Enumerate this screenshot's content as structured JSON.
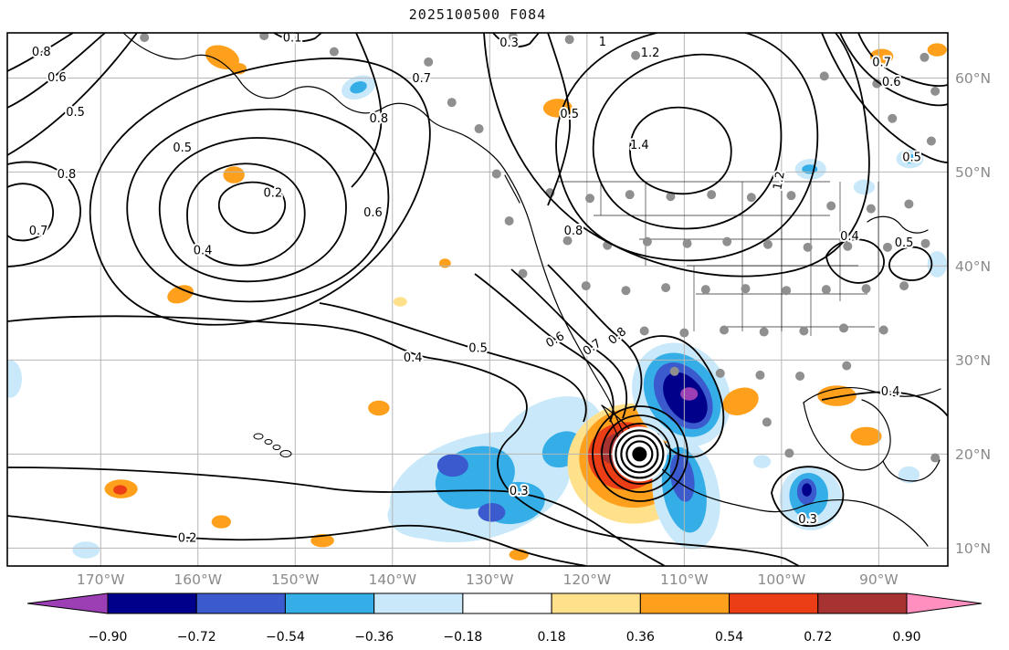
{
  "title": "2025100500 F084",
  "chart_data": {
    "type": "contour_map",
    "title": "2025100500 F084",
    "description": "Filled anomaly/sensitivity field (shaded), black line contours with inline labels, gray observation-station dots, and a tropical-cyclone position marker over the northeast Pacific / North America",
    "lon_range": [
      -179.6,
      -82.9
    ],
    "lat_range": [
      8.1,
      64.8
    ],
    "grid": true,
    "grid_color": "#b5b5b5",
    "frame_color": "#000000",
    "x_ticks": [
      {
        "lon": -170,
        "label": "170°W"
      },
      {
        "lon": -160,
        "label": "160°W"
      },
      {
        "lon": -150,
        "label": "150°W"
      },
      {
        "lon": -140,
        "label": "140°W"
      },
      {
        "lon": -130,
        "label": "130°W"
      },
      {
        "lon": -120,
        "label": "120°W"
      },
      {
        "lon": -110,
        "label": "110°W"
      },
      {
        "lon": -100,
        "label": "100°W"
      },
      {
        "lon": -90,
        "label": "90°W"
      }
    ],
    "y_ticks": [
      {
        "lat": 10,
        "label": "10°N"
      },
      {
        "lat": 20,
        "label": "20°N"
      },
      {
        "lat": 30,
        "label": "30°N"
      },
      {
        "lat": 40,
        "label": "40°N"
      },
      {
        "lat": 50,
        "label": "50°N"
      },
      {
        "lat": 60,
        "label": "60°N"
      }
    ],
    "tick_label_color": "#8a8a8a",
    "contour_line_color": "#000000",
    "station_color": "#8f8f8f",
    "cyclone_marker": {
      "lon": -114.6,
      "lat": 20.0
    },
    "contour_labels": [
      {
        "v": "0.8",
        "lon": -176.1,
        "lat": 62.8,
        "rot": 0
      },
      {
        "v": "0.6",
        "lon": -174.5,
        "lat": 60.1,
        "rot": 0
      },
      {
        "v": "0.5",
        "lon": -172.6,
        "lat": 56.4,
        "rot": 0
      },
      {
        "v": "0.8",
        "lon": -173.5,
        "lat": 49.8,
        "rot": 0
      },
      {
        "v": "0.7",
        "lon": -176.4,
        "lat": 43.8,
        "rot": 0
      },
      {
        "v": "0.2",
        "lon": -152.3,
        "lat": 47.8,
        "rot": 0
      },
      {
        "v": "0.4",
        "lon": -159.5,
        "lat": 41.7,
        "rot": 0
      },
      {
        "v": "0.5",
        "lon": -161.6,
        "lat": 52.6,
        "rot": 0
      },
      {
        "v": "0.6",
        "lon": -142.0,
        "lat": 45.7,
        "rot": 0
      },
      {
        "v": "0.7",
        "lon": -137.0,
        "lat": 60.0,
        "rot": 0
      },
      {
        "v": "0.8",
        "lon": -141.4,
        "lat": 55.7,
        "rot": 0
      },
      {
        "v": "0.1",
        "lon": -150.3,
        "lat": 64.3,
        "rot": 0
      },
      {
        "v": "0.3",
        "lon": -128.0,
        "lat": 63.8,
        "rot": 0
      },
      {
        "v": "0.5",
        "lon": -121.8,
        "lat": 56.2,
        "rot": 0
      },
      {
        "v": "0.4",
        "lon": -137.9,
        "lat": 30.3,
        "rot": 0
      },
      {
        "v": "0.5",
        "lon": -131.2,
        "lat": 31.3,
        "rot": 0
      },
      {
        "v": "0.6",
        "lon": -123.3,
        "lat": 32.2,
        "rot": -30
      },
      {
        "v": "0.7",
        "lon": -119.5,
        "lat": 31.4,
        "rot": -35
      },
      {
        "v": "0.8",
        "lon": -116.9,
        "lat": 32.6,
        "rot": -40
      },
      {
        "v": "0.2",
        "lon": -161.1,
        "lat": 11.1,
        "rot": 0
      },
      {
        "v": "0.3",
        "lon": -127.0,
        "lat": 16.1,
        "rot": 0
      },
      {
        "v": "0.3",
        "lon": -97.3,
        "lat": 13.1,
        "rot": 0
      },
      {
        "v": "1.2",
        "lon": -113.5,
        "lat": 62.7,
        "rot": 0
      },
      {
        "v": "1.4",
        "lon": -114.6,
        "lat": 52.9,
        "rot": 0
      },
      {
        "v": "1.2",
        "lon": -100.3,
        "lat": 49.1,
        "rot": -80
      },
      {
        "v": "1",
        "lon": -118.4,
        "lat": 63.9,
        "rot": 0
      },
      {
        "v": "0.8",
        "lon": -121.4,
        "lat": 43.8,
        "rot": 0
      },
      {
        "v": "0.7",
        "lon": -89.7,
        "lat": 61.7,
        "rot": 0
      },
      {
        "v": "0.6",
        "lon": -88.7,
        "lat": 59.6,
        "rot": 0
      },
      {
        "v": "0.5",
        "lon": -86.6,
        "lat": 51.6,
        "rot": 0
      },
      {
        "v": "0.4",
        "lon": -93.0,
        "lat": 43.2,
        "rot": 0
      },
      {
        "v": "0.5",
        "lon": -87.4,
        "lat": 42.5,
        "rot": 0
      },
      {
        "v": "0.4",
        "lon": -88.8,
        "lat": 26.7,
        "rot": 0
      }
    ],
    "region_fields": [
      "lon",
      "lat",
      "rx_deg",
      "ry_deg",
      "rotation_deg",
      "value"
    ],
    "shaded_regions": [
      [
        -131.0,
        16.5,
        9.5,
        5.5,
        -15,
        -0.25
      ],
      [
        -124.0,
        21.5,
        6.0,
        4.0,
        -30,
        -0.25
      ],
      [
        -136.5,
        13.5,
        4.0,
        2.5,
        0,
        -0.25
      ],
      [
        -141.4,
        24.9,
        1.1,
        0.8,
        0,
        0.45
      ],
      [
        -131.5,
        17.5,
        4.2,
        3.2,
        -20,
        -0.45
      ],
      [
        -127.5,
        14.8,
        3.2,
        2.2,
        -10,
        -0.45
      ],
      [
        -122.5,
        20.5,
        2.2,
        1.8,
        -30,
        -0.45
      ],
      [
        -133.8,
        18.8,
        1.6,
        1.2,
        0,
        -0.6
      ],
      [
        -129.8,
        13.8,
        1.4,
        1.0,
        0,
        -0.6
      ],
      [
        -115.2,
        19.0,
        6.8,
        6.4,
        0,
        0.25
      ],
      [
        -115.2,
        19.6,
        5.6,
        5.3,
        0,
        0.45
      ],
      [
        -116.0,
        19.8,
        3.9,
        3.6,
        0,
        0.6
      ],
      [
        -116.6,
        20.6,
        2.1,
        1.7,
        -20,
        0.8
      ],
      [
        -110.3,
        26.3,
        4.8,
        5.8,
        -35,
        -0.25
      ],
      [
        -110.2,
        26.3,
        3.6,
        4.8,
        -35,
        -0.45
      ],
      [
        -110.1,
        26.2,
        2.6,
        3.9,
        -35,
        -0.6
      ],
      [
        -109.9,
        26.0,
        1.9,
        3.0,
        -35,
        -0.8
      ],
      [
        -109.5,
        26.4,
        0.9,
        0.7,
        0,
        -0.95
      ],
      [
        -109.8,
        15.8,
        3.4,
        6.0,
        -10,
        -0.25
      ],
      [
        -110.0,
        16.2,
        2.2,
        4.6,
        -10,
        -0.45
      ],
      [
        -110.2,
        17.5,
        1.2,
        2.6,
        -10,
        -0.6
      ],
      [
        -114.6,
        20.0,
        2.8,
        2.6,
        0,
        0.0
      ],
      [
        -97.0,
        15.3,
        3.2,
        3.4,
        0,
        -0.25
      ],
      [
        -97.2,
        15.6,
        2.0,
        2.4,
        0,
        -0.45
      ],
      [
        -97.4,
        16.0,
        1.0,
        1.4,
        0,
        -0.6
      ],
      [
        -97.4,
        16.2,
        0.5,
        0.7,
        0,
        -0.8
      ],
      [
        -157.5,
        62.2,
        1.8,
        1.2,
        20,
        0.45
      ],
      [
        -155.8,
        61.0,
        0.8,
        0.6,
        0,
        0.45
      ],
      [
        -156.3,
        49.7,
        1.1,
        0.9,
        0,
        0.45
      ],
      [
        -161.8,
        37.0,
        1.4,
        0.9,
        -20,
        0.45
      ],
      [
        -139.2,
        36.2,
        0.7,
        0.5,
        0,
        0.25
      ],
      [
        -134.6,
        40.3,
        0.6,
        0.5,
        0,
        0.45
      ],
      [
        -123.0,
        56.8,
        1.5,
        1.0,
        0,
        0.45
      ],
      [
        -167.9,
        16.3,
        1.7,
        1.0,
        0,
        0.45
      ],
      [
        -168.0,
        16.2,
        0.7,
        0.5,
        0,
        0.6
      ],
      [
        -157.6,
        12.8,
        1.0,
        0.7,
        0,
        0.45
      ],
      [
        -147.2,
        10.8,
        1.2,
        0.7,
        0,
        0.45
      ],
      [
        -127.0,
        9.3,
        1.0,
        0.6,
        0,
        0.45
      ],
      [
        -104.2,
        25.6,
        1.9,
        1.4,
        -20,
        0.45
      ],
      [
        -94.3,
        26.2,
        2.0,
        1.1,
        0,
        0.45
      ],
      [
        -91.3,
        21.9,
        1.6,
        1.0,
        0,
        0.45
      ],
      [
        -89.7,
        62.3,
        1.2,
        0.8,
        0,
        0.45
      ],
      [
        -84.0,
        63.0,
        1.0,
        0.7,
        0,
        0.45
      ],
      [
        -143.5,
        59.0,
        1.8,
        1.2,
        -20,
        -0.25
      ],
      [
        -143.5,
        59.0,
        0.9,
        0.6,
        -20,
        -0.45
      ],
      [
        -171.5,
        9.8,
        1.4,
        0.9,
        0,
        -0.25
      ],
      [
        -179.3,
        28.0,
        1.2,
        2.0,
        0,
        -0.25
      ],
      [
        -97.0,
        50.3,
        1.6,
        1.1,
        0,
        -0.25
      ],
      [
        -97.1,
        50.3,
        0.8,
        0.5,
        0,
        -0.45
      ],
      [
        -91.5,
        48.4,
        1.1,
        0.8,
        0,
        -0.25
      ],
      [
        -86.8,
        51.4,
        1.4,
        1.0,
        0,
        -0.25
      ],
      [
        -86.8,
        51.4,
        0.7,
        0.5,
        0,
        -0.45
      ],
      [
        -84.0,
        40.2,
        1.0,
        1.4,
        0,
        -0.25
      ],
      [
        -102.0,
        19.2,
        0.9,
        0.7,
        0,
        -0.25
      ],
      [
        -86.9,
        17.8,
        1.1,
        0.9,
        0,
        -0.25
      ]
    ],
    "stations": [
      [
        -165.5,
        64.3
      ],
      [
        -153.2,
        64.5
      ],
      [
        -146.0,
        62.8
      ],
      [
        -136.3,
        61.7
      ],
      [
        -127.6,
        64.4
      ],
      [
        -121.8,
        64.1
      ],
      [
        -115.0,
        62.4
      ],
      [
        -95.6,
        60.2
      ],
      [
        -90.2,
        59.4
      ],
      [
        -85.3,
        62.2
      ],
      [
        -84.2,
        58.6
      ],
      [
        -88.6,
        55.7
      ],
      [
        -84.6,
        53.3
      ],
      [
        -133.9,
        57.4
      ],
      [
        -131.1,
        54.6
      ],
      [
        -129.3,
        49.8
      ],
      [
        -128.0,
        44.8
      ],
      [
        -126.6,
        39.2
      ],
      [
        -123.8,
        47.8
      ],
      [
        -119.7,
        47.2
      ],
      [
        -115.6,
        47.6
      ],
      [
        -111.4,
        47.4
      ],
      [
        -107.2,
        47.6
      ],
      [
        -103.1,
        47.3
      ],
      [
        -99.0,
        47.5
      ],
      [
        -94.9,
        46.4
      ],
      [
        -90.8,
        46.1
      ],
      [
        -86.9,
        46.6
      ],
      [
        -122.0,
        42.7
      ],
      [
        -117.9,
        42.2
      ],
      [
        -113.8,
        42.6
      ],
      [
        -109.7,
        42.4
      ],
      [
        -105.6,
        42.6
      ],
      [
        -101.4,
        42.3
      ],
      [
        -97.3,
        42.0
      ],
      [
        -93.2,
        42.1
      ],
      [
        -89.1,
        42.0
      ],
      [
        -85.2,
        42.4
      ],
      [
        -120.1,
        37.9
      ],
      [
        -116.0,
        37.4
      ],
      [
        -111.9,
        37.7
      ],
      [
        -107.8,
        37.5
      ],
      [
        -103.7,
        37.6
      ],
      [
        -99.5,
        37.4
      ],
      [
        -95.4,
        37.5
      ],
      [
        -91.3,
        37.6
      ],
      [
        -87.4,
        37.9
      ],
      [
        -114.1,
        33.1
      ],
      [
        -110.0,
        32.9
      ],
      [
        -105.9,
        33.2
      ],
      [
        -101.8,
        33.0
      ],
      [
        -97.7,
        33.1
      ],
      [
        -93.6,
        33.4
      ],
      [
        -89.5,
        33.2
      ],
      [
        -111.0,
        28.8
      ],
      [
        -106.3,
        28.6
      ],
      [
        -102.2,
        28.4
      ],
      [
        -98.1,
        28.3
      ],
      [
        -93.3,
        29.4
      ],
      [
        -101.5,
        23.4
      ],
      [
        -99.2,
        20.1
      ],
      [
        -84.2,
        19.6
      ]
    ],
    "colorbar": {
      "orientation": "horizontal",
      "boundaries": [
        -0.9,
        -0.72,
        -0.54,
        -0.36,
        -0.18,
        0.18,
        0.36,
        0.54,
        0.72,
        0.9
      ],
      "tick_labels": [
        "−0.90",
        "−0.72",
        "−0.54",
        "−0.36",
        "−0.18",
        "0.18",
        "0.36",
        "0.54",
        "0.72",
        "0.90"
      ],
      "segment_colors": [
        "#00008b",
        "#3a5acd",
        "#35aee8",
        "#c9e9fa",
        "#ffffff",
        "#ffe18c",
        "#ffa01c",
        "#eb3e17",
        "#a63232"
      ],
      "under_color": "#9c3fb5",
      "over_color": "#ff8fbf",
      "label_color": "#000000"
    }
  }
}
